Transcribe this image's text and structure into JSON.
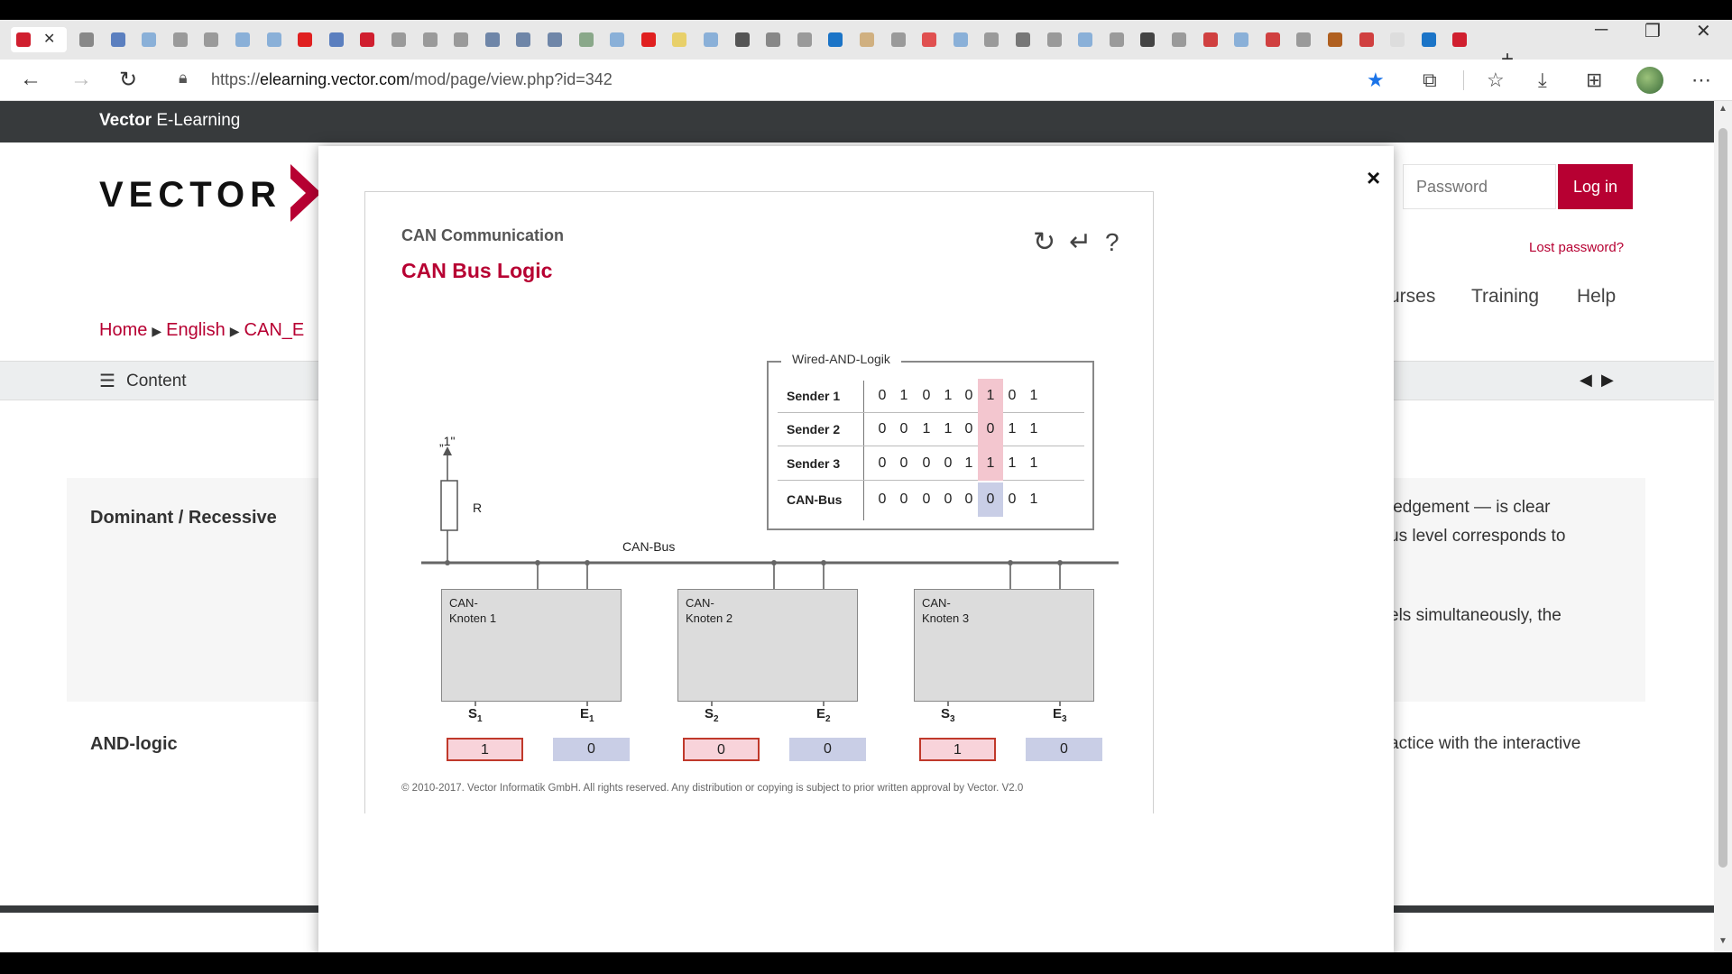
{
  "browser": {
    "url_prefix": "https://",
    "url_host": "elearning.vector.com",
    "url_path": "/mod/page/view.php?id=342",
    "tab_close": "✕",
    "new_tab": "+",
    "icons": {
      "back": "back-arrow-icon",
      "forward": "forward-arrow-icon",
      "reload": "reload-icon",
      "lock": "lock-icon",
      "star": "star-icon",
      "favorites": "favorites-icon",
      "download": "download-icon",
      "collections": "collections-icon",
      "more": "more-icon"
    },
    "tab_colors": [
      "#d01f2f",
      "#888888",
      "#5b7fbf",
      "#8ab0d8",
      "#9a9a9a",
      "#9a9a9a",
      "#8ab0d8",
      "#8ab0d8",
      "#e02020",
      "#5b7fbf",
      "#d01f2f",
      "#9a9a9a",
      "#9a9a9a",
      "#9a9a9a",
      "#6f86a8",
      "#6f86a8",
      "#6f86a8",
      "#8aa88a",
      "#8ab0d8",
      "#e02020",
      "#e8d06a",
      "#8ab0d8",
      "#555555",
      "#888888",
      "#9a9a9a",
      "#1b74c7",
      "#d0b080",
      "#9a9a9a",
      "#e05050",
      "#8ab0d8",
      "#9a9a9a",
      "#777777",
      "#9a9a9a",
      "#8ab0d8",
      "#9a9a9a",
      "#444444",
      "#9a9a9a",
      "#d04040",
      "#8ab0d8",
      "#d04040",
      "#9a9a9a",
      "#b06020",
      "#d04040",
      "#dddddd",
      "#1b74c7",
      "#d01f2f"
    ]
  },
  "site": {
    "name_bold": "Vector",
    "name_rest": " E-Learning",
    "logo_text": "VECTOR",
    "brand_color": "#b70032"
  },
  "login": {
    "password_placeholder": "Password",
    "login_button": "Log in",
    "lost_password": "Lost password?"
  },
  "nav": {
    "courses_partial": "urses",
    "training": "Training",
    "help": "Help"
  },
  "breadcrumb": {
    "home": "Home",
    "english": "English",
    "course_partial": "CAN_E",
    "sep": "▶"
  },
  "content_bar": {
    "label": "Content",
    "prev": "◀",
    "next": "▶"
  },
  "sections": [
    {
      "title": "Dominant / Recessive",
      "lines": [
        "ledgement — is clear",
        "us level corresponds to",
        "els simultaneously, the"
      ]
    },
    {
      "title": "AND-logic",
      "lines": [
        "actice with the interactive"
      ]
    }
  ],
  "modal": {
    "close": "×",
    "subtitle": "CAN Communication",
    "title": "CAN Bus Logic",
    "icons": {
      "reset": "↻",
      "enter": "↵",
      "help": "?"
    },
    "copyright": "© 2010-2017. Vector Informatik GmbH. All rights reserved. Any distribution or copying is subject to prior written approval by Vector. V2.0"
  },
  "wired_and": {
    "title": "Wired-AND-Logik",
    "highlight_col": 5,
    "rows": [
      {
        "label": "Sender 1",
        "bits": [
          "0",
          "1",
          "0",
          "1",
          "0",
          "1",
          "0",
          "1"
        ],
        "hl": "pink"
      },
      {
        "label": "Sender 2",
        "bits": [
          "0",
          "0",
          "1",
          "1",
          "0",
          "0",
          "1",
          "1"
        ],
        "hl": "pink"
      },
      {
        "label": "Sender 3",
        "bits": [
          "0",
          "0",
          "0",
          "0",
          "1",
          "1",
          "1",
          "1"
        ],
        "hl": "pink"
      },
      {
        "label": "CAN-Bus",
        "bits": [
          "0",
          "0",
          "0",
          "0",
          "0",
          "0",
          "0",
          "1"
        ],
        "hl": "blue"
      }
    ]
  },
  "circuit": {
    "bus_label": "CAN-Bus",
    "resistor_label": "R",
    "supply_label": "„1\"",
    "nodes": [
      {
        "label": "CAN-\nKnoten 1",
        "s_label": "S",
        "s_sub": "1",
        "e_label": "E",
        "e_sub": "1",
        "s_value": "1",
        "e_value": "0"
      },
      {
        "label": "CAN-\nKnoten 2",
        "s_label": "S",
        "s_sub": "2",
        "e_label": "E",
        "e_sub": "2",
        "s_value": "0",
        "e_value": "0"
      },
      {
        "label": "CAN-\nKnoten 3",
        "s_label": "S",
        "s_sub": "3",
        "e_label": "E",
        "e_sub": "3",
        "s_value": "1",
        "e_value": "0"
      }
    ]
  }
}
